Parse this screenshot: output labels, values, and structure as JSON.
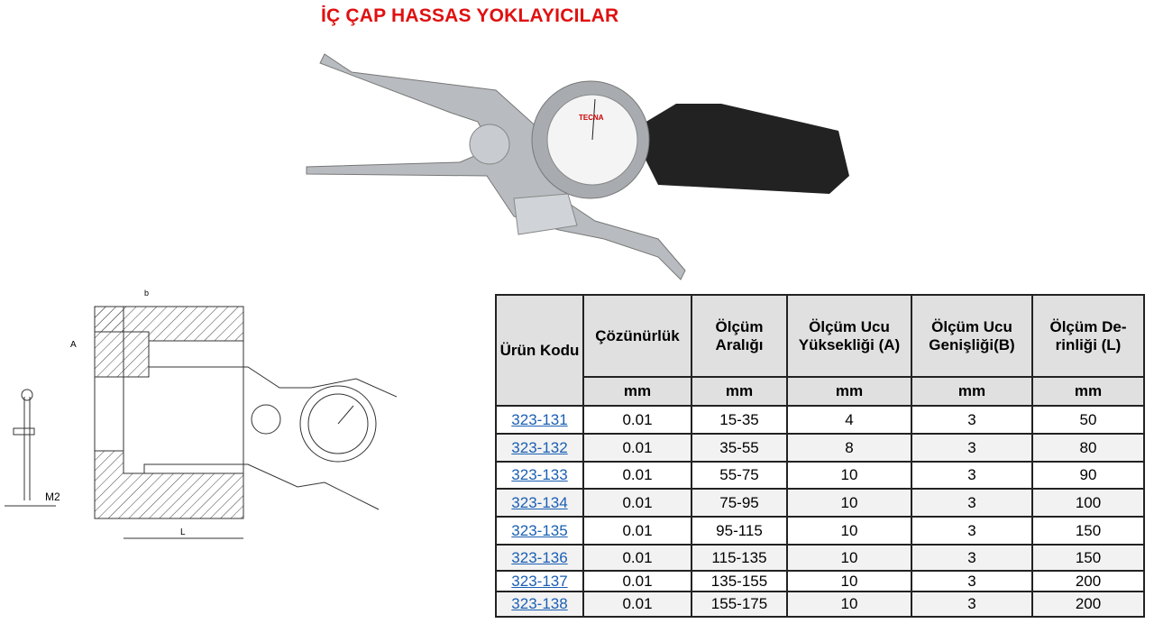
{
  "title": "İÇ ÇAP HASSAS YOKLAYICILAR",
  "photo_brand": "TECNA",
  "drawing_labels": {
    "b": "b",
    "a": "A",
    "l": "L",
    "m2": "M2"
  },
  "table": {
    "headers": [
      "Ürün Kodu",
      "Çözünürlük",
      "Ölçüm Aralığı",
      "Ölçüm Ucu Yüksekliği (A)",
      "Ölçüm Ucu Genişliği(B)",
      "Ölçüm De-rinliği (L)"
    ],
    "units": [
      "mm",
      "mm",
      "mm",
      "mm",
      "mm"
    ],
    "rows": [
      [
        "323-131",
        "0.01",
        "15-35",
        "4",
        "3",
        "50"
      ],
      [
        "323-132",
        "0.01",
        "35-55",
        "8",
        "3",
        "80"
      ],
      [
        "323-133",
        "0.01",
        "55-75",
        "10",
        "3",
        "90"
      ],
      [
        "323-134",
        "0.01",
        "75-95",
        "10",
        "3",
        "100"
      ],
      [
        "323-135",
        "0.01",
        "95-115",
        "10",
        "3",
        "150"
      ],
      [
        "323-136",
        "0.01",
        "115-135",
        "10",
        "3",
        "150"
      ],
      [
        "323-137",
        "0.01",
        "135-155",
        "10",
        "3",
        "200"
      ],
      [
        "323-138",
        "0.01",
        "155-175",
        "10",
        "3",
        "200"
      ]
    ]
  }
}
